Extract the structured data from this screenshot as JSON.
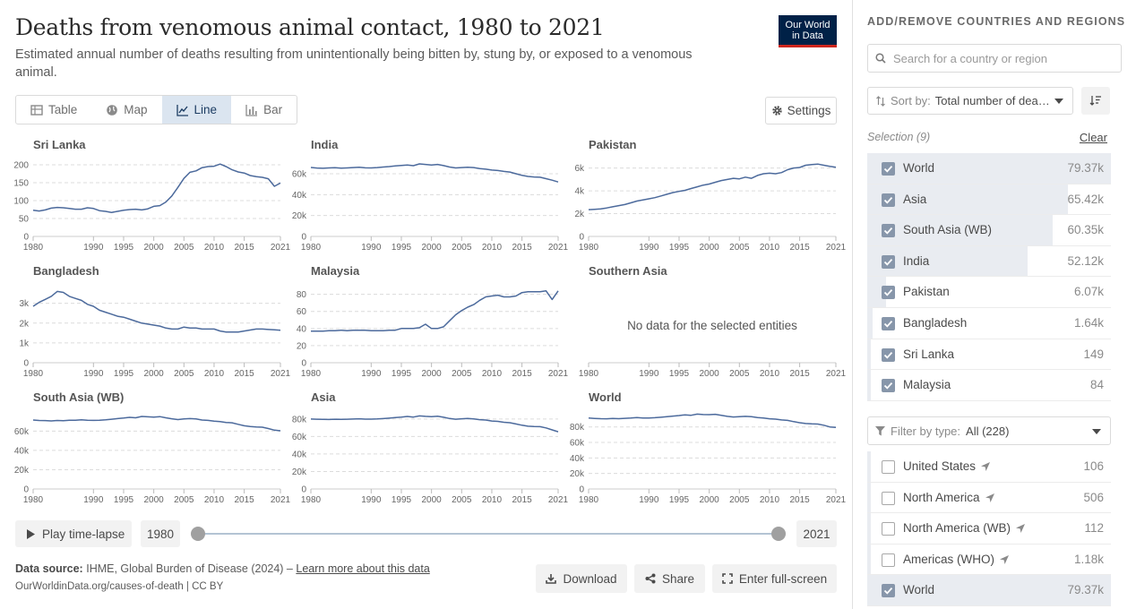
{
  "header": {
    "title": "Deaths from venomous animal contact, 1980 to 2021",
    "subtitle": "Estimated annual number of deaths resulting from unintentionally being bitten by, stung by, or exposed to a venomous animal.",
    "logo_line1": "Our World",
    "logo_line2": "in Data"
  },
  "tabs": [
    {
      "label": "Table",
      "icon": "table-icon",
      "active": false
    },
    {
      "label": "Map",
      "icon": "globe-icon",
      "active": false
    },
    {
      "label": "Line",
      "icon": "line-chart-icon",
      "active": true
    },
    {
      "label": "Bar",
      "icon": "bar-chart-icon",
      "active": false
    }
  ],
  "settings_label": "Settings",
  "colors": {
    "line": "#4c6a9c",
    "active_tab": "#dbe5f0",
    "selected_row": "#e9ecf1",
    "logo_bg": "#002147",
    "logo_accent": "#ce261e"
  },
  "chart_data": [
    {
      "type": "line",
      "title": "Sri Lanka",
      "x": [
        1980,
        1981,
        1982,
        1983,
        1984,
        1985,
        1986,
        1987,
        1988,
        1989,
        1990,
        1991,
        1992,
        1993,
        1994,
        1995,
        1996,
        1997,
        1998,
        1999,
        2000,
        2001,
        2002,
        2003,
        2004,
        2005,
        2006,
        2007,
        2008,
        2009,
        2010,
        2011,
        2012,
        2013,
        2014,
        2015,
        2016,
        2017,
        2018,
        2019,
        2020,
        2021
      ],
      "values": [
        73,
        71,
        74,
        79,
        81,
        80,
        78,
        76,
        76,
        80,
        78,
        72,
        70,
        67,
        70,
        73,
        75,
        76,
        74,
        77,
        84,
        86,
        96,
        113,
        137,
        162,
        179,
        183,
        192,
        195,
        196,
        202,
        195,
        186,
        180,
        177,
        170,
        167,
        165,
        161,
        140,
        149
      ],
      "yticks": [
        0,
        50,
        100,
        150,
        200
      ],
      "ytick_labels": [
        "0",
        "50",
        "100",
        "150",
        "200"
      ],
      "ylim": [
        0,
        210
      ]
    },
    {
      "type": "line",
      "title": "India",
      "x": [
        1980,
        1981,
        1982,
        1983,
        1984,
        1985,
        1986,
        1987,
        1988,
        1989,
        1990,
        1991,
        1992,
        1993,
        1994,
        1995,
        1996,
        1997,
        1998,
        1999,
        2000,
        2001,
        2002,
        2003,
        2004,
        2005,
        2006,
        2007,
        2008,
        2009,
        2010,
        2011,
        2012,
        2013,
        2014,
        2015,
        2016,
        2017,
        2018,
        2019,
        2020,
        2021
      ],
      "values": [
        66000,
        65500,
        65200,
        65600,
        65800,
        65300,
        65600,
        65900,
        66200,
        65700,
        65600,
        65900,
        66400,
        66900,
        67500,
        67900,
        68300,
        67700,
        69400,
        68900,
        68400,
        68900,
        67800,
        66400,
        65600,
        65900,
        66300,
        65900,
        64900,
        64400,
        63500,
        63100,
        62200,
        61600,
        60000,
        58500,
        57400,
        56900,
        56700,
        55300,
        53800,
        52120
      ],
      "yticks": [
        0,
        20000,
        40000,
        60000
      ],
      "ytick_labels": [
        "0",
        "20k",
        "40k",
        "60k"
      ],
      "ylim": [
        0,
        72000
      ]
    },
    {
      "type": "line",
      "title": "Pakistan",
      "x": [
        1980,
        1981,
        1982,
        1983,
        1984,
        1985,
        1986,
        1987,
        1988,
        1989,
        1990,
        1991,
        1992,
        1993,
        1994,
        1995,
        1996,
        1997,
        1998,
        1999,
        2000,
        2001,
        2002,
        2003,
        2004,
        2005,
        2006,
        2007,
        2008,
        2009,
        2010,
        2011,
        2012,
        2013,
        2014,
        2015,
        2016,
        2017,
        2018,
        2019,
        2020,
        2021
      ],
      "values": [
        2350,
        2380,
        2420,
        2500,
        2600,
        2700,
        2800,
        2950,
        3100,
        3200,
        3300,
        3400,
        3550,
        3700,
        3850,
        3950,
        4050,
        4200,
        4350,
        4500,
        4600,
        4750,
        4900,
        5000,
        5100,
        5050,
        5200,
        5100,
        5350,
        5500,
        5550,
        5500,
        5600,
        5850,
        6000,
        6050,
        6250,
        6300,
        6350,
        6250,
        6150,
        6070
      ],
      "yticks": [
        0,
        2000,
        4000,
        6000
      ],
      "ytick_labels": [
        "0",
        "2k",
        "4k",
        "6k"
      ],
      "ylim": [
        0,
        6600
      ]
    },
    {
      "type": "line",
      "title": "Bangladesh",
      "x": [
        1980,
        1981,
        1982,
        1983,
        1984,
        1985,
        1986,
        1987,
        1988,
        1989,
        1990,
        1991,
        1992,
        1993,
        1994,
        1995,
        1996,
        1997,
        1998,
        1999,
        2000,
        2001,
        2002,
        2003,
        2004,
        2005,
        2006,
        2007,
        2008,
        2009,
        2010,
        2011,
        2012,
        2013,
        2014,
        2015,
        2016,
        2017,
        2018,
        2019,
        2020,
        2021
      ],
      "values": [
        2850,
        3050,
        3200,
        3350,
        3600,
        3550,
        3350,
        3250,
        3150,
        2950,
        2850,
        2650,
        2550,
        2450,
        2350,
        2300,
        2200,
        2100,
        2000,
        1950,
        1900,
        1850,
        1750,
        1700,
        1700,
        1800,
        1750,
        1750,
        1700,
        1700,
        1700,
        1600,
        1550,
        1550,
        1550,
        1600,
        1650,
        1700,
        1700,
        1680,
        1660,
        1640
      ],
      "yticks": [
        0,
        1000,
        2000,
        3000
      ],
      "ytick_labels": [
        "0",
        "1k",
        "2k",
        "3k"
      ],
      "ylim": [
        0,
        3800
      ]
    },
    {
      "type": "line",
      "title": "Malaysia",
      "x": [
        1980,
        1981,
        1982,
        1983,
        1984,
        1985,
        1986,
        1987,
        1988,
        1989,
        1990,
        1991,
        1992,
        1993,
        1994,
        1995,
        1996,
        1997,
        1998,
        1999,
        2000,
        2001,
        2002,
        2003,
        2004,
        2005,
        2006,
        2007,
        2008,
        2009,
        2010,
        2011,
        2012,
        2013,
        2014,
        2015,
        2016,
        2017,
        2018,
        2019,
        2020,
        2021
      ],
      "values": [
        37,
        37,
        37,
        37.5,
        37.5,
        38,
        37.5,
        38,
        38,
        38,
        37.5,
        37.5,
        37.5,
        38,
        38,
        40,
        40,
        40,
        41,
        45,
        40,
        40,
        42,
        49,
        56,
        61,
        65,
        68,
        73,
        77,
        78,
        79,
        77,
        77,
        78,
        82,
        83,
        83,
        83,
        84,
        74,
        84
      ],
      "yticks": [
        0,
        20,
        40,
        60,
        80
      ],
      "ytick_labels": [
        "0",
        "20",
        "40",
        "60",
        "80"
      ],
      "ylim": [
        0,
        88
      ]
    },
    {
      "type": "line",
      "title": "Southern Asia",
      "x": [],
      "values": [],
      "empty_message": "No data for the selected entities"
    },
    {
      "type": "line",
      "title": "South Asia (WB)",
      "x": [
        1980,
        1981,
        1982,
        1983,
        1984,
        1985,
        1986,
        1987,
        1988,
        1989,
        1990,
        1991,
        1992,
        1993,
        1994,
        1995,
        1996,
        1997,
        1998,
        1999,
        2000,
        2001,
        2002,
        2003,
        2004,
        2005,
        2006,
        2007,
        2008,
        2009,
        2010,
        2011,
        2012,
        2013,
        2014,
        2015,
        2016,
        2017,
        2018,
        2019,
        2020,
        2021
      ],
      "values": [
        71500,
        71000,
        70900,
        70600,
        71000,
        70800,
        71200,
        71300,
        71800,
        71200,
        71100,
        71300,
        71700,
        72300,
        73000,
        73500,
        74300,
        73800,
        75200,
        74800,
        74600,
        75000,
        73800,
        72800,
        72000,
        72600,
        73000,
        72600,
        71500,
        71100,
        70300,
        69900,
        69000,
        68600,
        67000,
        65600,
        64700,
        64300,
        64100,
        62700,
        61000,
        60350
      ],
      "yticks": [
        0,
        20000,
        40000,
        60000
      ],
      "ytick_labels": [
        "0",
        "20k",
        "40k",
        "60k"
      ],
      "ylim": [
        0,
        78000
      ]
    },
    {
      "type": "line",
      "title": "Asia",
      "x": [
        1980,
        1981,
        1982,
        1983,
        1984,
        1985,
        1986,
        1987,
        1988,
        1989,
        1990,
        1991,
        1992,
        1993,
        1994,
        1995,
        1996,
        1997,
        1998,
        1999,
        2000,
        2001,
        2002,
        2003,
        2004,
        2005,
        2006,
        2007,
        2008,
        2009,
        2010,
        2011,
        2012,
        2013,
        2014,
        2015,
        2016,
        2017,
        2018,
        2019,
        2020,
        2021
      ],
      "values": [
        80000,
        79800,
        79500,
        79400,
        79800,
        79500,
        79800,
        80000,
        80300,
        79900,
        79900,
        80100,
        80500,
        81000,
        81600,
        82100,
        82900,
        82200,
        83500,
        83000,
        82700,
        83200,
        82000,
        80600,
        79800,
        80300,
        80600,
        80200,
        79200,
        78800,
        77700,
        77300,
        76300,
        75800,
        74300,
        72900,
        71800,
        71400,
        71300,
        69800,
        67600,
        65420
      ],
      "yticks": [
        0,
        20000,
        40000,
        60000,
        80000
      ],
      "ytick_labels": [
        "0",
        "20k",
        "40k",
        "60k",
        "80k"
      ],
      "ylim": [
        0,
        86000
      ]
    },
    {
      "type": "line",
      "title": "World",
      "x": [
        1980,
        1981,
        1982,
        1983,
        1984,
        1985,
        1986,
        1987,
        1988,
        1989,
        1990,
        1991,
        1992,
        1993,
        1994,
        1995,
        1996,
        1997,
        1998,
        1999,
        2000,
        2001,
        2002,
        2003,
        2004,
        2005,
        2006,
        2007,
        2008,
        2009,
        2010,
        2011,
        2012,
        2013,
        2014,
        2015,
        2016,
        2017,
        2018,
        2019,
        2020,
        2021
      ],
      "values": [
        91500,
        91000,
        90600,
        90500,
        91000,
        90700,
        91100,
        91500,
        92000,
        91600,
        91600,
        91900,
        92500,
        93200,
        94000,
        94700,
        95600,
        95000,
        96500,
        96000,
        95800,
        96300,
        95000,
        93600,
        92800,
        93300,
        93600,
        93200,
        92100,
        91600,
        90500,
        90100,
        89000,
        88400,
        86800,
        85500,
        84400,
        84000,
        83700,
        82200,
        80000,
        79370
      ],
      "yticks": [
        0,
        20000,
        40000,
        60000,
        80000
      ],
      "ytick_labels": [
        "0",
        "20k",
        "40k",
        "60k",
        "80k"
      ],
      "ylim": [
        0,
        97000
      ]
    }
  ],
  "xaxis": {
    "ticks": [
      1980,
      1990,
      1995,
      2000,
      2005,
      2010,
      2015,
      2021
    ],
    "tick_labels": [
      "1980",
      "1990",
      "1995",
      "2000",
      "2005",
      "2010",
      "2015",
      "2021"
    ]
  },
  "timeline": {
    "play_label": "Play time-lapse",
    "start_year": "1980",
    "end_year": "2021",
    "start_fraction": 0,
    "end_fraction": 1
  },
  "footer": {
    "source_label": "Data source:",
    "source_text": "IHME, Global Burden of Disease (2024) –",
    "learn_more": "Learn more about this data",
    "url_line": "OurWorldinData.org/causes-of-death | CC BY",
    "download_label": "Download",
    "share_label": "Share",
    "fullscreen_label": "Enter full-screen"
  },
  "sidebar": {
    "heading": "ADD/REMOVE COUNTRIES AND REGIONS",
    "search_placeholder": "Search for a country or region",
    "sort_label": "Sort by:",
    "sort_value": "Total number of deaths from venomous animal contact",
    "selection_label": "Selection (9)",
    "clear_label": "Clear",
    "selected": [
      {
        "name": "World",
        "value": "79.37k",
        "fraction": 1.0
      },
      {
        "name": "Asia",
        "value": "65.42k",
        "fraction": 0.824
      },
      {
        "name": "South Asia (WB)",
        "value": "60.35k",
        "fraction": 0.76
      },
      {
        "name": "India",
        "value": "52.12k",
        "fraction": 0.657
      },
      {
        "name": "Pakistan",
        "value": "6.07k",
        "fraction": 0.076
      },
      {
        "name": "Bangladesh",
        "value": "1.64k",
        "fraction": 0.021
      },
      {
        "name": "Sri Lanka",
        "value": "149",
        "fraction": 0.002
      },
      {
        "name": "Malaysia",
        "value": "84",
        "fraction": 0.001
      }
    ],
    "filter_label": "Filter by type:",
    "filter_value": "All (228)",
    "entities": [
      {
        "name": "United States",
        "value": "106",
        "checked": false,
        "nav": true,
        "fraction": 0.001
      },
      {
        "name": "North America",
        "value": "506",
        "checked": false,
        "nav": true,
        "fraction": 0.006
      },
      {
        "name": "North America (WB)",
        "value": "112",
        "checked": false,
        "nav": true,
        "fraction": 0.001
      },
      {
        "name": "Americas (WHO)",
        "value": "1.18k",
        "checked": false,
        "nav": true,
        "fraction": 0.015
      },
      {
        "name": "World",
        "value": "79.37k",
        "checked": true,
        "nav": false,
        "fraction": 1.0
      }
    ]
  }
}
